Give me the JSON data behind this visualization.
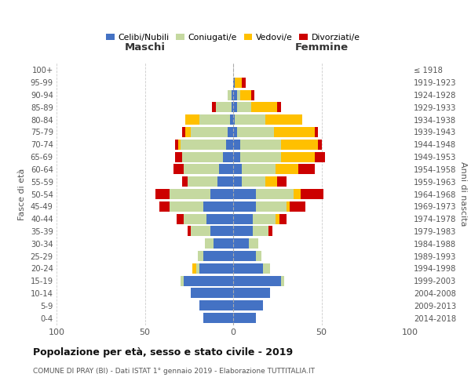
{
  "age_groups": [
    "100+",
    "95-99",
    "90-94",
    "85-89",
    "80-84",
    "75-79",
    "70-74",
    "65-69",
    "60-64",
    "55-59",
    "50-54",
    "45-49",
    "40-44",
    "35-39",
    "30-34",
    "25-29",
    "20-24",
    "15-19",
    "10-14",
    "5-9",
    "0-4"
  ],
  "birth_years": [
    "≤ 1918",
    "1919-1923",
    "1924-1928",
    "1929-1933",
    "1934-1938",
    "1939-1943",
    "1944-1948",
    "1949-1953",
    "1954-1958",
    "1959-1963",
    "1964-1968",
    "1969-1973",
    "1974-1978",
    "1979-1983",
    "1984-1988",
    "1989-1993",
    "1994-1998",
    "1999-2003",
    "2004-2008",
    "2009-2013",
    "2014-2018"
  ],
  "colors": {
    "celibi": "#4472c4",
    "coniugati": "#c5d9a0",
    "vedovi": "#ffc000",
    "divorziati": "#cc0000"
  },
  "title": "Popolazione per età, sesso e stato civile - 2019",
  "subtitle": "COMUNE DI PRAY (BI) - Dati ISTAT 1° gennaio 2019 - Elaborazione TUTTITALIA.IT",
  "xlabel_left": "Maschi",
  "xlabel_right": "Femmine",
  "ylabel_left": "Fasce di età",
  "ylabel_right": "Anni di nascita",
  "xlim": 100,
  "legend_labels": [
    "Celibi/Nubili",
    "Coniugati/e",
    "Vedovi/e",
    "Divorziati/e"
  ],
  "maschi_celibi": [
    0,
    0,
    1,
    1,
    2,
    3,
    4,
    6,
    8,
    9,
    13,
    17,
    15,
    13,
    11,
    17,
    19,
    28,
    24,
    19,
    17
  ],
  "maschi_coniugati": [
    0,
    0,
    2,
    9,
    17,
    21,
    26,
    23,
    20,
    17,
    23,
    19,
    13,
    11,
    5,
    3,
    2,
    2,
    0,
    0,
    0
  ],
  "maschi_vedovi": [
    0,
    0,
    0,
    0,
    8,
    3,
    1,
    0,
    0,
    0,
    0,
    0,
    0,
    0,
    0,
    0,
    2,
    0,
    0,
    0,
    0
  ],
  "maschi_divorziati": [
    0,
    0,
    0,
    2,
    0,
    2,
    2,
    4,
    6,
    3,
    8,
    6,
    4,
    2,
    0,
    0,
    0,
    0,
    0,
    0,
    0
  ],
  "femmine_celibi": [
    0,
    1,
    2,
    2,
    1,
    2,
    4,
    4,
    5,
    5,
    13,
    13,
    11,
    11,
    9,
    13,
    17,
    27,
    21,
    17,
    13
  ],
  "femmine_coniugati": [
    0,
    0,
    2,
    8,
    17,
    21,
    23,
    23,
    19,
    13,
    21,
    17,
    13,
    9,
    5,
    3,
    4,
    2,
    0,
    0,
    0
  ],
  "femmine_vedovi": [
    0,
    4,
    6,
    15,
    21,
    23,
    21,
    19,
    13,
    7,
    4,
    2,
    2,
    0,
    0,
    0,
    0,
    0,
    0,
    0,
    0
  ],
  "femmine_divorziati": [
    0,
    2,
    2,
    2,
    0,
    2,
    2,
    6,
    9,
    5,
    13,
    9,
    4,
    2,
    0,
    0,
    0,
    0,
    0,
    0,
    0
  ]
}
